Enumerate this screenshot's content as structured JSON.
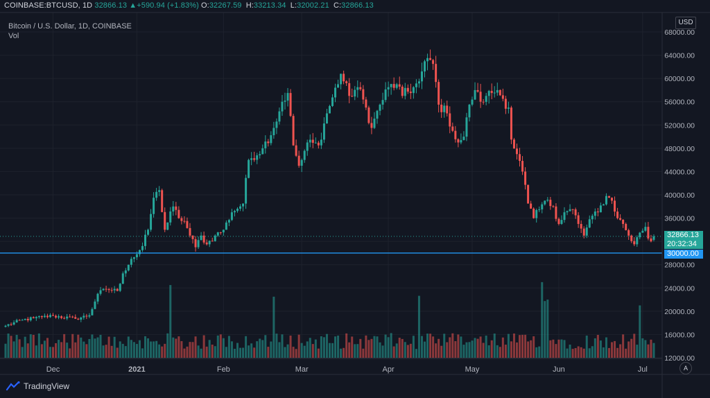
{
  "header": {
    "symbol": "COINBASE:BTCUSD, 1D",
    "last": "32866.13",
    "change": "+590.94 (+1.83%)",
    "o_label": "O:",
    "o_value": "32267.59",
    "h_label": "H:",
    "h_value": "33213.34",
    "l_label": "L:",
    "l_value": "32002.21",
    "c_label": "C:",
    "c_value": "32866.13"
  },
  "series_title": "Bitcoin / U.S. Dollar, 1D, COINBASE",
  "volume_label": "Vol",
  "currency_button": "USD",
  "auto_button": "A",
  "price_tag": {
    "price": "32866.13",
    "countdown": "20:32:34",
    "hline": "30000.00"
  },
  "brand": "TradingView",
  "colors": {
    "up": "#26a69a",
    "down": "#ef5350",
    "hline": "#2196f3",
    "background": "#131722"
  },
  "chart_data": {
    "type": "candlestick",
    "y_ticks": [
      12000,
      16000,
      20000,
      24000,
      28000,
      32000,
      36000,
      40000,
      44000,
      48000,
      52000,
      56000,
      60000,
      64000,
      68000
    ],
    "y_tick_labels": [
      "12000.00",
      "16000.00",
      "20000.00",
      "24000.00",
      "28000.00",
      "32000.00",
      "36000.00",
      "40000.00",
      "44000.00",
      "48000.00",
      "52000.00",
      "56000.00",
      "60000.00",
      "64000.00",
      "68000.00"
    ],
    "ylim": [
      11000,
      70200
    ],
    "x_labels": [
      "Dec",
      "2021",
      "Feb",
      "Mar",
      "Apr",
      "May",
      "Jun",
      "Jul"
    ],
    "x_label_index": [
      17,
      47,
      78,
      106,
      137,
      167,
      198,
      228
    ],
    "bar_count": 233,
    "horizontal_line": 30000,
    "volume_scale_max": 26500,
    "anchors": [
      [
        0,
        17500
      ],
      [
        6,
        18500
      ],
      [
        10,
        18800
      ],
      [
        13,
        19000
      ],
      [
        17,
        19200
      ],
      [
        25,
        18700
      ],
      [
        30,
        19300
      ],
      [
        33,
        23000
      ],
      [
        36,
        23800
      ],
      [
        40,
        23500
      ],
      [
        42,
        26500
      ],
      [
        45,
        29000
      ],
      [
        47,
        29800
      ],
      [
        49,
        31200
      ],
      [
        51,
        34000
      ],
      [
        53,
        39500
      ],
      [
        55,
        40800
      ],
      [
        57,
        34000
      ],
      [
        60,
        38000
      ],
      [
        62,
        36000
      ],
      [
        64,
        35500
      ],
      [
        66,
        33000
      ],
      [
        68,
        31000
      ],
      [
        70,
        33000
      ],
      [
        72,
        31500
      ],
      [
        75,
        33000
      ],
      [
        78,
        34000
      ],
      [
        81,
        37000
      ],
      [
        85,
        38500
      ],
      [
        87,
        46000
      ],
      [
        92,
        48000
      ],
      [
        96,
        51500
      ],
      [
        99,
        56000
      ],
      [
        101,
        57500
      ],
      [
        103,
        48500
      ],
      [
        105,
        45000
      ],
      [
        106,
        46000
      ],
      [
        108,
        49000
      ],
      [
        112,
        48500
      ],
      [
        115,
        54000
      ],
      [
        120,
        60800
      ],
      [
        123,
        57000
      ],
      [
        126,
        58500
      ],
      [
        129,
        55000
      ],
      [
        131,
        51500
      ],
      [
        134,
        55500
      ],
      [
        137,
        58500
      ],
      [
        140,
        59000
      ],
      [
        142,
        57000
      ],
      [
        146,
        58500
      ],
      [
        148,
        59500
      ],
      [
        151,
        63500
      ],
      [
        153,
        62500
      ],
      [
        155,
        55500
      ],
      [
        158,
        54000
      ],
      [
        160,
        51000
      ],
      [
        162,
        49000
      ],
      [
        164,
        50000
      ],
      [
        166,
        55500
      ],
      [
        168,
        58000
      ],
      [
        170,
        56000
      ],
      [
        172,
        57000
      ],
      [
        174,
        57500
      ],
      [
        176,
        58000
      ],
      [
        178,
        56500
      ],
      [
        180,
        55000
      ],
      [
        181,
        49500
      ],
      [
        183,
        47000
      ],
      [
        185,
        44000
      ],
      [
        187,
        38500
      ],
      [
        189,
        36000
      ],
      [
        191,
        37500
      ],
      [
        193,
        39000
      ],
      [
        196,
        38000
      ],
      [
        198,
        35000
      ],
      [
        200,
        37000
      ],
      [
        203,
        37500
      ],
      [
        205,
        35000
      ],
      [
        207,
        33000
      ],
      [
        209,
        35800
      ],
      [
        212,
        37000
      ],
      [
        215,
        39800
      ],
      [
        217,
        39000
      ],
      [
        219,
        36000
      ],
      [
        221,
        35000
      ],
      [
        223,
        33000
      ],
      [
        225,
        31500
      ],
      [
        227,
        33500
      ],
      [
        229,
        34500
      ],
      [
        230,
        32500
      ],
      [
        231,
        32000
      ],
      [
        232,
        32866
      ]
    ],
    "last_bar": {
      "open": 32267.59,
      "high": 33213.34,
      "low": 32002.21,
      "close": 32866.13
    },
    "volume_spikes": {
      "59": 25000,
      "96": 21000,
      "148": 21300,
      "192": 26000,
      "193": 19500,
      "194": 20000,
      "227": 18000
    }
  }
}
